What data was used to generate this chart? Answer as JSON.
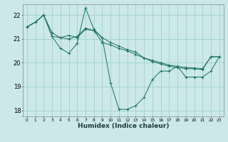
{
  "xlabel": "Humidex (Indice chaleur)",
  "bg_color": "#cce8e8",
  "grid_color": "#99cccc",
  "line_color": "#1a7060",
  "xlim": [
    -0.5,
    23.5
  ],
  "ylim": [
    17.75,
    22.45
  ],
  "yticks": [
    18,
    19,
    20,
    21,
    22
  ],
  "xticks": [
    0,
    1,
    2,
    3,
    4,
    5,
    6,
    7,
    8,
    9,
    10,
    11,
    12,
    13,
    14,
    15,
    16,
    17,
    18,
    19,
    20,
    21,
    22,
    23
  ],
  "series": [
    [
      21.5,
      21.7,
      22.0,
      21.1,
      20.6,
      20.4,
      20.8,
      22.3,
      21.4,
      21.05,
      19.15,
      18.05,
      18.05,
      18.2,
      18.55,
      19.3,
      19.65,
      19.65,
      19.85,
      19.4,
      19.4,
      19.4,
      19.65,
      20.25
    ],
    [
      21.5,
      21.7,
      22.0,
      21.1,
      21.05,
      21.15,
      21.05,
      21.4,
      21.35,
      21.05,
      20.85,
      20.7,
      20.55,
      20.45,
      20.2,
      20.05,
      19.95,
      19.85,
      19.8,
      19.75,
      19.75,
      19.72,
      20.25,
      20.25
    ],
    [
      21.5,
      21.7,
      22.0,
      21.25,
      21.05,
      21.0,
      21.1,
      21.45,
      21.35,
      20.85,
      20.75,
      20.6,
      20.5,
      20.35,
      20.2,
      20.1,
      20.0,
      19.9,
      19.85,
      19.8,
      19.78,
      19.75,
      20.25,
      20.25
    ]
  ],
  "marker_size": 2.5
}
